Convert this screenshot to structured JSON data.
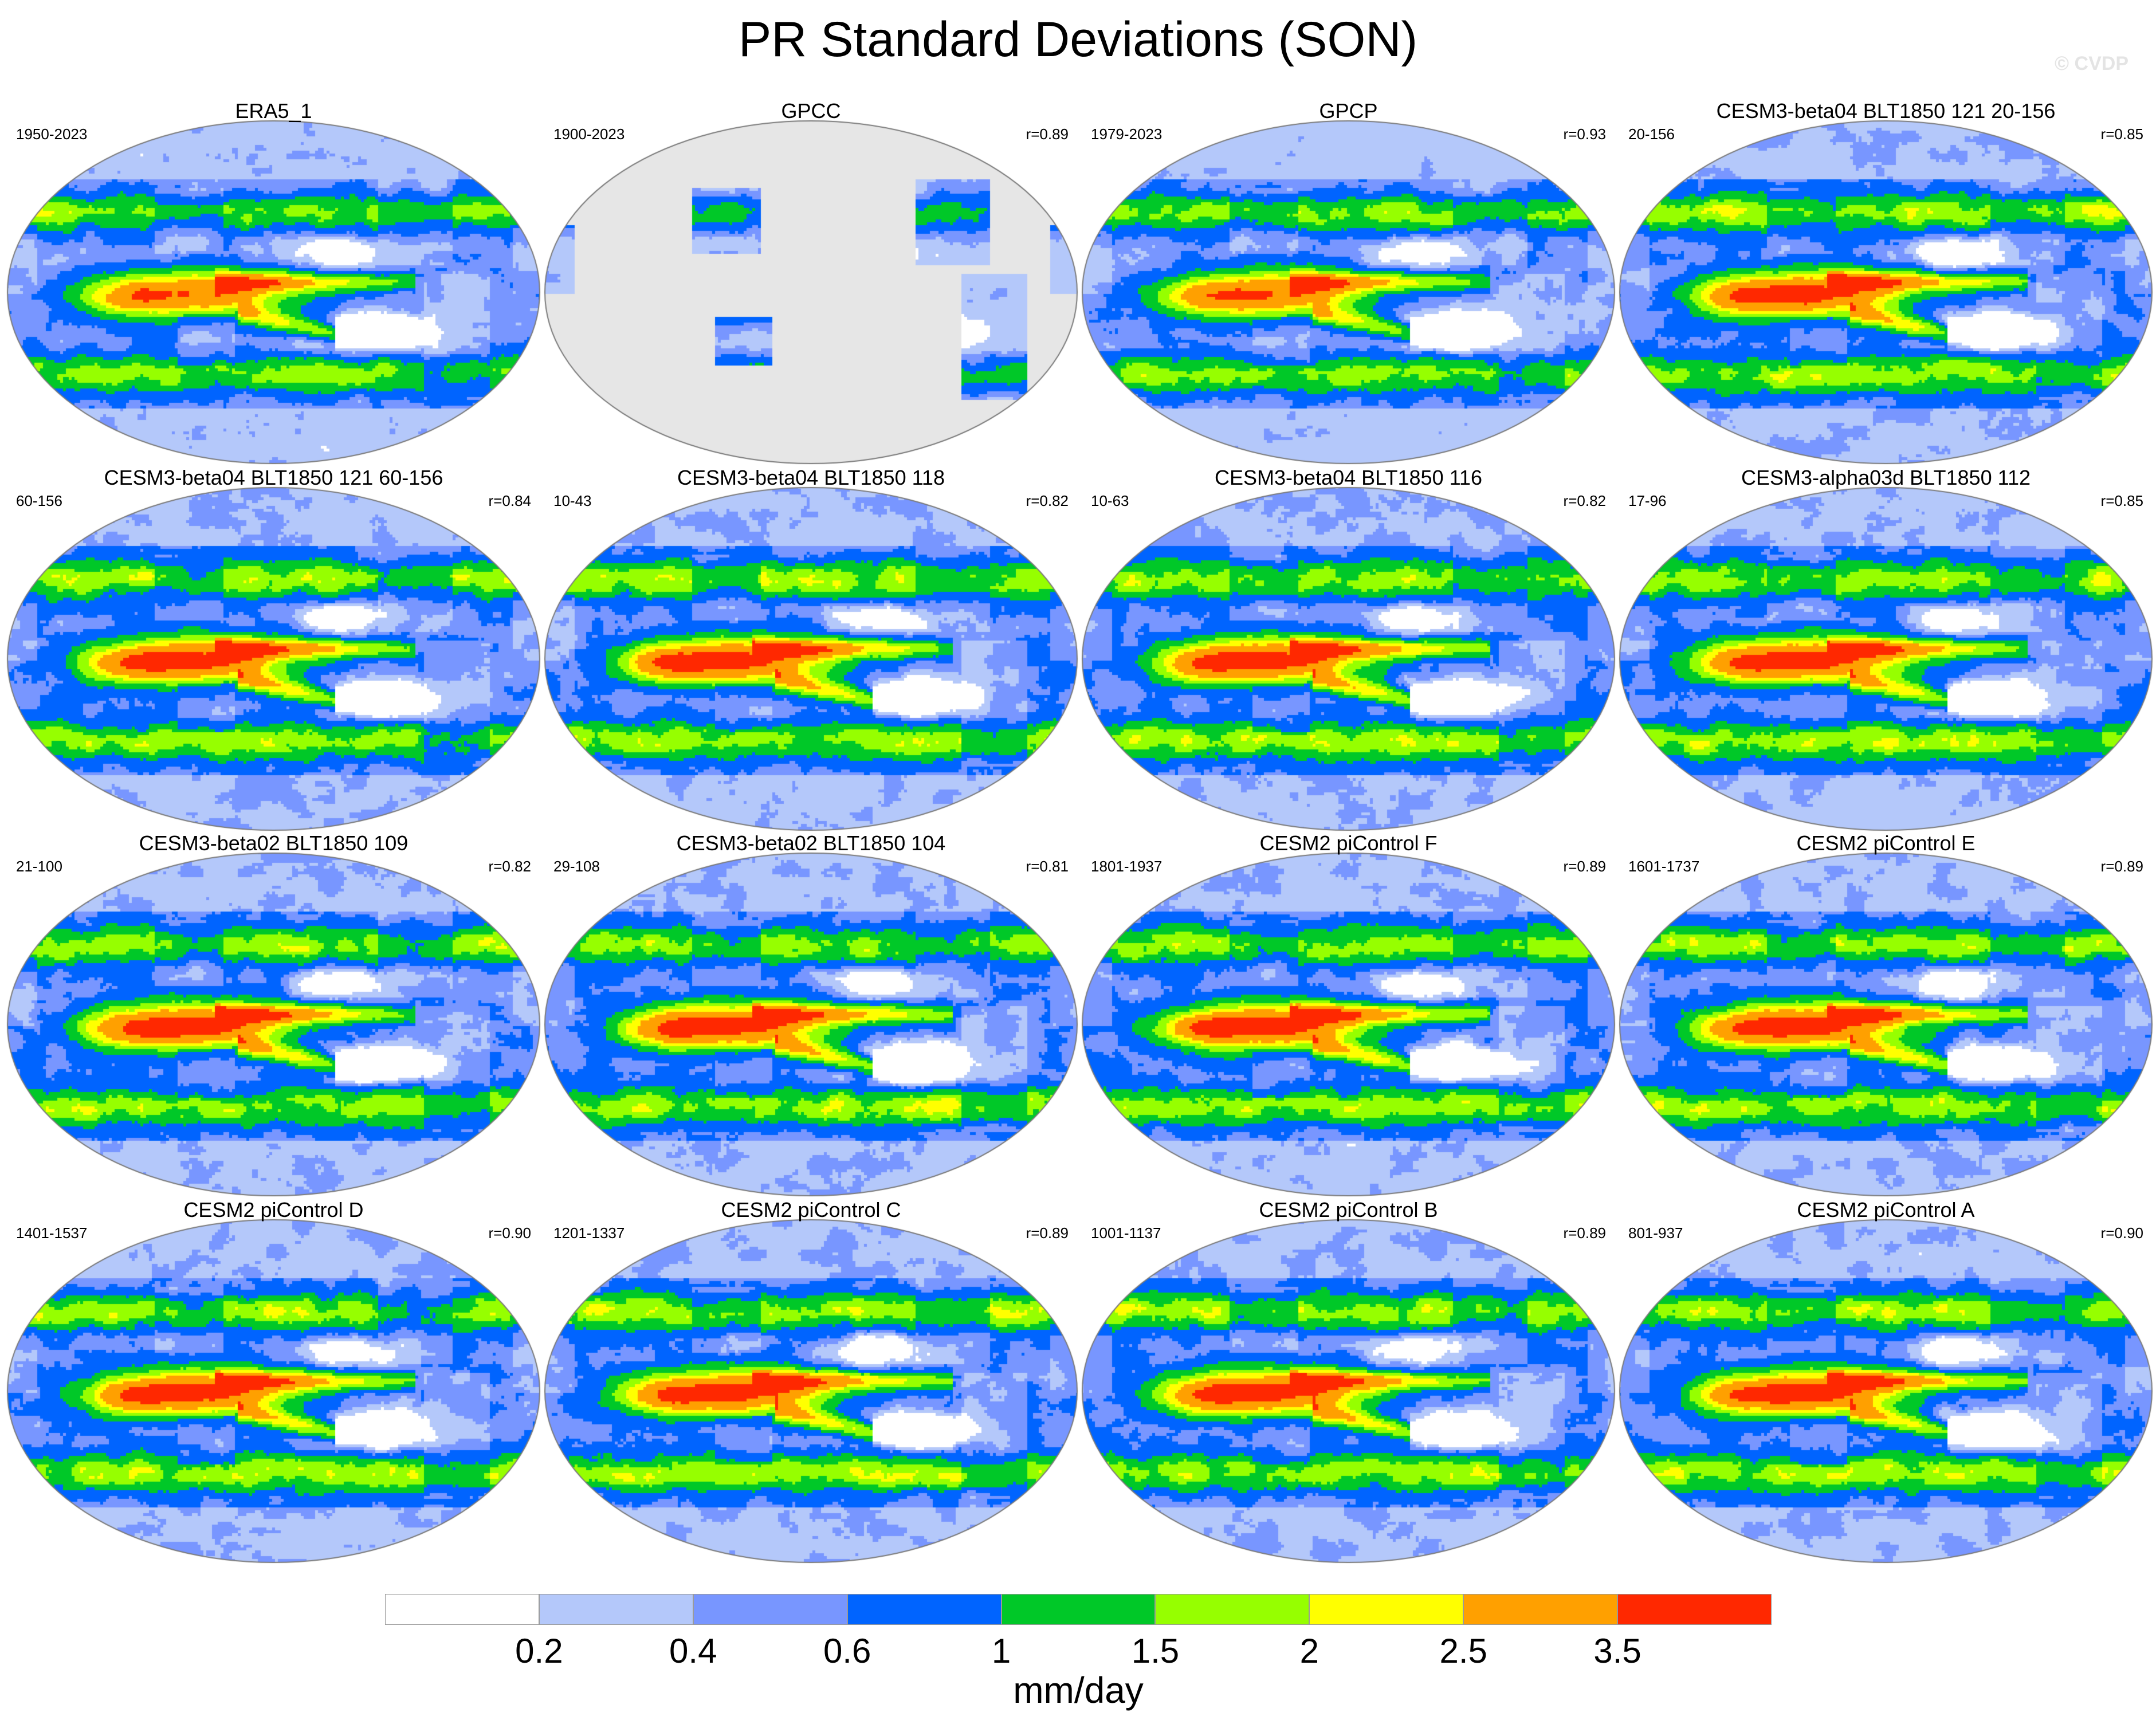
{
  "title": "PR Standard Deviations (SON)",
  "watermark": "© CVDP",
  "colors": {
    "ocean_gray": "#e6e6e6",
    "levels": [
      "#ffffff",
      "#b4c8fa",
      "#7896ff",
      "#0064ff",
      "#00c828",
      "#96ff00",
      "#ffff00",
      "#ffa000",
      "#ff2800"
    ]
  },
  "panels": [
    {
      "title": "ERA5_1",
      "years": "1950-2023",
      "corr": "",
      "style": "obs",
      "seed": 1
    },
    {
      "title": "GPCC",
      "years": "1900-2023",
      "corr": "r=0.89",
      "style": "land",
      "seed": 2
    },
    {
      "title": "GPCP",
      "years": "1979-2023",
      "corr": "r=0.93",
      "style": "obs",
      "seed": 3
    },
    {
      "title": "CESM3-beta04 BLT1850 121 20-156",
      "years": "20-156",
      "corr": "r=0.85",
      "style": "model",
      "seed": 4
    },
    {
      "title": "CESM3-beta04 BLT1850 121 60-156",
      "years": "60-156",
      "corr": "r=0.84",
      "style": "model",
      "seed": 5
    },
    {
      "title": "CESM3-beta04 BLT1850 118",
      "years": "10-43",
      "corr": "r=0.82",
      "style": "model",
      "seed": 6
    },
    {
      "title": "CESM3-beta04 BLT1850 116",
      "years": "10-63",
      "corr": "r=0.82",
      "style": "model",
      "seed": 7
    },
    {
      "title": "CESM3-alpha03d BLT1850 112",
      "years": "17-96",
      "corr": "r=0.85",
      "style": "model",
      "seed": 8
    },
    {
      "title": "CESM3-beta02 BLT1850 109",
      "years": "21-100",
      "corr": "r=0.82",
      "style": "model",
      "seed": 9
    },
    {
      "title": "CESM3-beta02 BLT1850 104",
      "years": "29-108",
      "corr": "r=0.81",
      "style": "model",
      "seed": 10
    },
    {
      "title": "CESM2 piControl F",
      "years": "1801-1937",
      "corr": "r=0.89",
      "style": "model",
      "seed": 11
    },
    {
      "title": "CESM2 piControl E",
      "years": "1601-1737",
      "corr": "r=0.89",
      "style": "model",
      "seed": 12
    },
    {
      "title": "CESM2 piControl D",
      "years": "1401-1537",
      "corr": "r=0.90",
      "style": "model",
      "seed": 13
    },
    {
      "title": "CESM2 piControl C",
      "years": "1201-1337",
      "corr": "r=0.89",
      "style": "model",
      "seed": 14
    },
    {
      "title": "CESM2 piControl B",
      "years": "1001-1137",
      "corr": "r=0.89",
      "style": "model",
      "seed": 15
    },
    {
      "title": "CESM2 piControl A",
      "years": "801-937",
      "corr": "r=0.90",
      "style": "model",
      "seed": 16
    }
  ],
  "legend": {
    "ticks": [
      "0.2",
      "0.4",
      "0.6",
      "1",
      "1.5",
      "2",
      "2.5",
      "3.5"
    ],
    "unit": "mm/day"
  }
}
